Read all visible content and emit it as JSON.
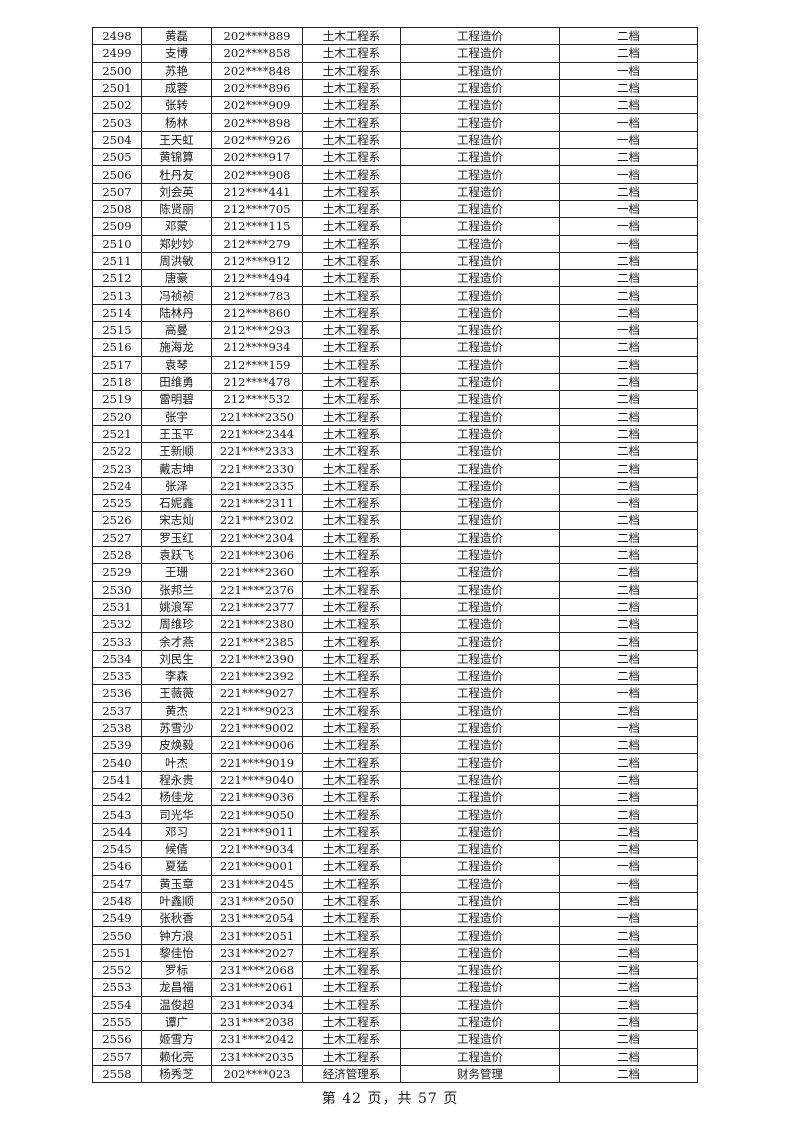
{
  "rows": [
    [
      "2498",
      "黄磊",
      "202****889",
      "土木工程系",
      "工程造价",
      "二档"
    ],
    [
      "2499",
      "支博",
      "202****858",
      "土木工程系",
      "工程造价",
      "二档"
    ],
    [
      "2500",
      "苏艳",
      "202****848",
      "土木工程系",
      "工程造价",
      "一档"
    ],
    [
      "2501",
      "成蓉",
      "202****896",
      "土木工程系",
      "工程造价",
      "二档"
    ],
    [
      "2502",
      "张转",
      "202****909",
      "土木工程系",
      "工程造价",
      "二档"
    ],
    [
      "2503",
      "杨林",
      "202****898",
      "土木工程系",
      "工程造价",
      "一档"
    ],
    [
      "2504",
      "王天虹",
      "202****926",
      "土木工程系",
      "工程造价",
      "一档"
    ],
    [
      "2505",
      "黄锦算",
      "202****917",
      "土木工程系",
      "工程造价",
      "二档"
    ],
    [
      "2506",
      "杜丹友",
      "202****908",
      "土木工程系",
      "工程造价",
      "一档"
    ],
    [
      "2507",
      "刘会英",
      "212****441",
      "土木工程系",
      "工程造价",
      "二档"
    ],
    [
      "2508",
      "陈贤丽",
      "212****705",
      "土木工程系",
      "工程造价",
      "一档"
    ],
    [
      "2509",
      "邓蒙",
      "212****115",
      "土木工程系",
      "工程造价",
      "一档"
    ],
    [
      "2510",
      "郑妙妙",
      "212****279",
      "土木工程系",
      "工程造价",
      "一档"
    ],
    [
      "2511",
      "周洪敏",
      "212****912",
      "土木工程系",
      "工程造价",
      "二档"
    ],
    [
      "2512",
      "唐豪",
      "212****494",
      "土木工程系",
      "工程造价",
      "二档"
    ],
    [
      "2513",
      "冯祯祯",
      "212****783",
      "土木工程系",
      "工程造价",
      "二档"
    ],
    [
      "2514",
      "陆林丹",
      "212****860",
      "土木工程系",
      "工程造价",
      "二档"
    ],
    [
      "2515",
      "高曼",
      "212****293",
      "土木工程系",
      "工程造价",
      "一档"
    ],
    [
      "2516",
      "施海龙",
      "212****934",
      "土木工程系",
      "工程造价",
      "二档"
    ],
    [
      "2517",
      "袁琴",
      "212****159",
      "土木工程系",
      "工程造价",
      "二档"
    ],
    [
      "2518",
      "田维勇",
      "212****478",
      "土木工程系",
      "工程造价",
      "二档"
    ],
    [
      "2519",
      "雷明碧",
      "212****532",
      "土木工程系",
      "工程造价",
      "二档"
    ],
    [
      "2520",
      "张宇",
      "221****2350",
      "土木工程系",
      "工程造价",
      "二档"
    ],
    [
      "2521",
      "王玉平",
      "221****2344",
      "土木工程系",
      "工程造价",
      "二档"
    ],
    [
      "2522",
      "王新顺",
      "221****2333",
      "土木工程系",
      "工程造价",
      "二档"
    ],
    [
      "2523",
      "戴志坤",
      "221****2330",
      "土木工程系",
      "工程造价",
      "二档"
    ],
    [
      "2524",
      "张泽",
      "221****2335",
      "土木工程系",
      "工程造价",
      "二档"
    ],
    [
      "2525",
      "石妮鑫",
      "221****2311",
      "土木工程系",
      "工程造价",
      "一档"
    ],
    [
      "2526",
      "宋志灿",
      "221****2302",
      "土木工程系",
      "工程造价",
      "二档"
    ],
    [
      "2527",
      "罗玉红",
      "221****2304",
      "土木工程系",
      "工程造价",
      "二档"
    ],
    [
      "2528",
      "袁跃飞",
      "221****2306",
      "土木工程系",
      "工程造价",
      "二档"
    ],
    [
      "2529",
      "王珊",
      "221****2360",
      "土木工程系",
      "工程造价",
      "二档"
    ],
    [
      "2530",
      "张邦兰",
      "221****2376",
      "土木工程系",
      "工程造价",
      "二档"
    ],
    [
      "2531",
      "姚浪军",
      "221****2377",
      "土木工程系",
      "工程造价",
      "二档"
    ],
    [
      "2532",
      "周维珍",
      "221****2380",
      "土木工程系",
      "工程造价",
      "二档"
    ],
    [
      "2533",
      "余才燕",
      "221****2385",
      "土木工程系",
      "工程造价",
      "二档"
    ],
    [
      "2534",
      "刘民生",
      "221****2390",
      "土木工程系",
      "工程造价",
      "二档"
    ],
    [
      "2535",
      "李森",
      "221****2392",
      "土木工程系",
      "工程造价",
      "二档"
    ],
    [
      "2536",
      "王薇薇",
      "221****9027",
      "土木工程系",
      "工程造价",
      "一档"
    ],
    [
      "2537",
      "黄杰",
      "221****9023",
      "土木工程系",
      "工程造价",
      "二档"
    ],
    [
      "2538",
      "苏雪沙",
      "221****9002",
      "土木工程系",
      "工程造价",
      "一档"
    ],
    [
      "2539",
      "皮焕毅",
      "221****9006",
      "土木工程系",
      "工程造价",
      "二档"
    ],
    [
      "2540",
      "叶杰",
      "221****9019",
      "土木工程系",
      "工程造价",
      "二档"
    ],
    [
      "2541",
      "程永贵",
      "221****9040",
      "土木工程系",
      "工程造价",
      "二档"
    ],
    [
      "2542",
      "杨佳龙",
      "221****9036",
      "土木工程系",
      "工程造价",
      "二档"
    ],
    [
      "2543",
      "司光华",
      "221****9050",
      "土木工程系",
      "工程造价",
      "二档"
    ],
    [
      "2544",
      "邓习",
      "221****9011",
      "土木工程系",
      "工程造价",
      "二档"
    ],
    [
      "2545",
      "候倩",
      "221****9034",
      "土木工程系",
      "工程造价",
      "二档"
    ],
    [
      "2546",
      "夏猛",
      "221****9001",
      "土木工程系",
      "工程造价",
      "一档"
    ],
    [
      "2547",
      "黄玉章",
      "231****2045",
      "土木工程系",
      "工程造价",
      "一档"
    ],
    [
      "2548",
      "叶鑫顺",
      "231****2050",
      "土木工程系",
      "工程造价",
      "二档"
    ],
    [
      "2549",
      "张秋香",
      "231****2054",
      "土木工程系",
      "工程造价",
      "一档"
    ],
    [
      "2550",
      "钟方浪",
      "231****2051",
      "土木工程系",
      "工程造价",
      "二档"
    ],
    [
      "2551",
      "黎佳怡",
      "231****2027",
      "土木工程系",
      "工程造价",
      "二档"
    ],
    [
      "2552",
      "罗标",
      "231****2068",
      "土木工程系",
      "工程造价",
      "二档"
    ],
    [
      "2553",
      "龙昌福",
      "231****2061",
      "土木工程系",
      "工程造价",
      "二档"
    ],
    [
      "2554",
      "温俊超",
      "231****2034",
      "土木工程系",
      "工程造价",
      "二档"
    ],
    [
      "2555",
      "谭广",
      "231****2038",
      "土木工程系",
      "工程造价",
      "二档"
    ],
    [
      "2556",
      "姬雪方",
      "231****2042",
      "土木工程系",
      "工程造价",
      "二档"
    ],
    [
      "2557",
      "赖化亮",
      "231****2035",
      "土木工程系",
      "工程造价",
      "二档"
    ],
    [
      "2558",
      "杨秀芝",
      "202****023",
      "经济管理系",
      "财务管理",
      "二档"
    ]
  ],
  "footer": "第 42 页，共 57 页"
}
